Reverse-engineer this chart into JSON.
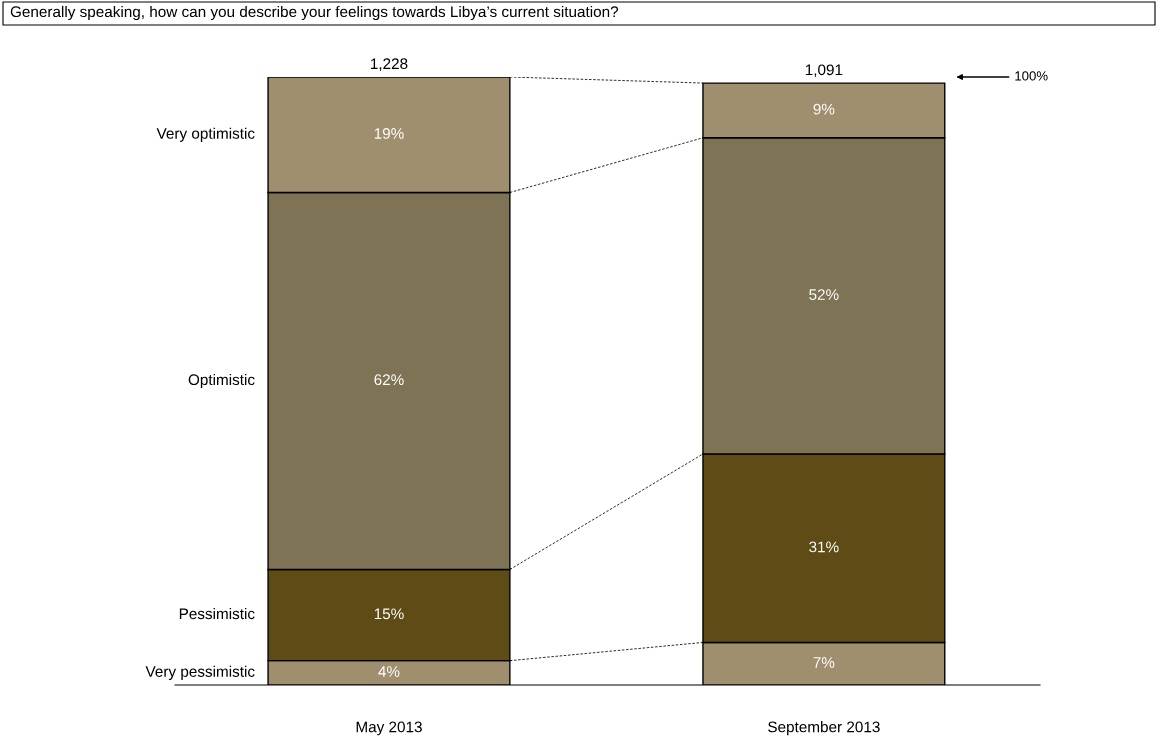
{
  "chart_data": {
    "type": "bar",
    "stacked": true,
    "title": "Generally speaking, how can you describe your feelings towards Libya’s current situation?",
    "categories": [
      "May 2013",
      "September 2013"
    ],
    "series": [
      {
        "name": "Very pessimistic",
        "color": "#a08f6f",
        "values": [
          4,
          7
        ],
        "value_labels": [
          "4%",
          "7%"
        ]
      },
      {
        "name": "Pessimistic",
        "color": "#5e4b16",
        "values": [
          15,
          31
        ],
        "value_labels": [
          "15%",
          "31%"
        ]
      },
      {
        "name": "Optimistic",
        "color": "#7e7354",
        "values": [
          62,
          52
        ],
        "value_labels": [
          "62%",
          "52%"
        ]
      },
      {
        "name": "Very optimistic",
        "color": "#a08f6f",
        "values": [
          19,
          9
        ],
        "value_labels": [
          "19%",
          "9%"
        ]
      }
    ],
    "annotations": [
      "1,228",
      "1,091",
      "100%"
    ],
    "tick_labels": "x",
    "grid": false,
    "legend": false
  }
}
